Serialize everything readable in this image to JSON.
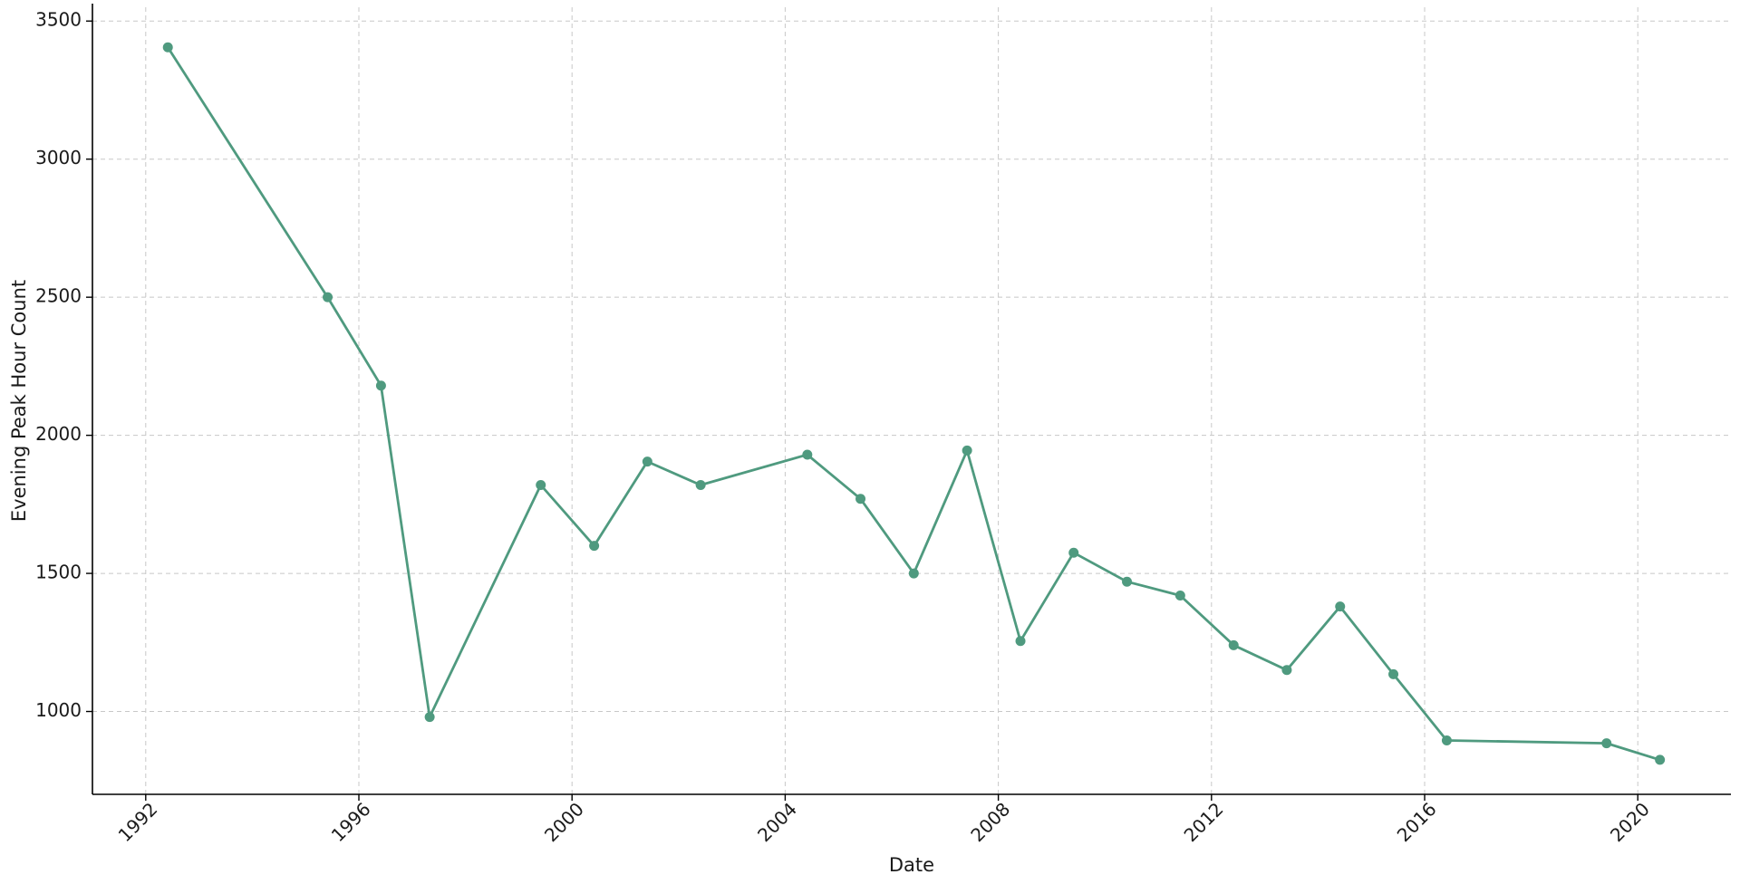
{
  "chart_data": {
    "type": "line",
    "title": "",
    "xlabel": "Date",
    "ylabel": "Evening Peak Hour Count",
    "x_ticks": [
      "1992",
      "1996",
      "2000",
      "2004",
      "2008",
      "2012",
      "2016",
      "2020"
    ],
    "y_ticks": [
      "1000",
      "1500",
      "2000",
      "2500",
      "3000",
      "3500"
    ],
    "xlim": [
      "1991-01-01",
      "2021-10-01"
    ],
    "ylim": [
      700,
      3550
    ],
    "grid": true,
    "color": "#4f9a7f",
    "series": [
      {
        "points": [
          {
            "x": "1992-06-01",
            "y": 3405
          },
          {
            "x": "1995-06-01",
            "y": 2500
          },
          {
            "x": "1996-06-01",
            "y": 2180
          },
          {
            "x": "1997-05-01",
            "y": 980
          },
          {
            "x": "1999-06-01",
            "y": 1820
          },
          {
            "x": "2000-06-01",
            "y": 1600
          },
          {
            "x": "2001-06-01",
            "y": 1905
          },
          {
            "x": "2002-06-01",
            "y": 1820
          },
          {
            "x": "2004-06-01",
            "y": 1930
          },
          {
            "x": "2005-06-01",
            "y": 1770
          },
          {
            "x": "2006-06-01",
            "y": 1500
          },
          {
            "x": "2007-06-01",
            "y": 1945
          },
          {
            "x": "2008-06-01",
            "y": 1255
          },
          {
            "x": "2009-06-01",
            "y": 1575
          },
          {
            "x": "2010-06-01",
            "y": 1470
          },
          {
            "x": "2011-06-01",
            "y": 1420
          },
          {
            "x": "2012-06-01",
            "y": 1240
          },
          {
            "x": "2013-06-01",
            "y": 1150
          },
          {
            "x": "2014-06-01",
            "y": 1380
          },
          {
            "x": "2015-06-01",
            "y": 1135
          },
          {
            "x": "2016-06-01",
            "y": 895
          },
          {
            "x": "2019-06-01",
            "y": 885
          },
          {
            "x": "2020-06-01",
            "y": 825
          }
        ]
      }
    ]
  }
}
